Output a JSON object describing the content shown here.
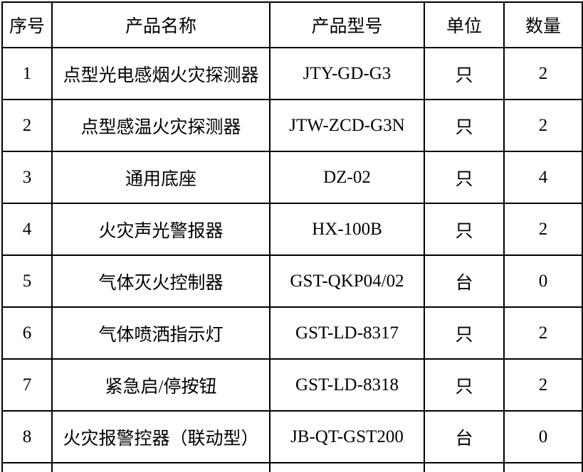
{
  "table": {
    "columns": [
      {
        "key": "no",
        "label": "序号"
      },
      {
        "key": "name",
        "label": "产品名称"
      },
      {
        "key": "model",
        "label": "产品型号"
      },
      {
        "key": "unit",
        "label": "单位"
      },
      {
        "key": "qty",
        "label": "数量"
      }
    ],
    "rows": [
      {
        "no": "1",
        "name": "点型光电感烟火灾探测器",
        "model": "JTY-GD-G3",
        "unit": "只",
        "qty": "2"
      },
      {
        "no": "2",
        "name": "点型感温火灾探测器",
        "model": "JTW-ZCD-G3N",
        "unit": "只",
        "qty": "2"
      },
      {
        "no": "3",
        "name": "通用底座",
        "model": "DZ-02",
        "unit": "只",
        "qty": "4"
      },
      {
        "no": "4",
        "name": "火灾声光警报器",
        "model": "HX-100B",
        "unit": "只",
        "qty": "2"
      },
      {
        "no": "5",
        "name": "气体灭火控制器",
        "model": "GST-QKP04/02",
        "unit": "台",
        "qty": "0"
      },
      {
        "no": "6",
        "name": "气体喷洒指示灯",
        "model": "GST-LD-8317",
        "unit": "只",
        "qty": "2"
      },
      {
        "no": "7",
        "name": "紧急启/停按钮",
        "model": "GST-LD-8318",
        "unit": "只",
        "qty": "2"
      },
      {
        "no": "8",
        "name": "火灾报警控器（联动型）",
        "model": "JB-QT-GST200",
        "unit": "台",
        "qty": "0"
      }
    ]
  },
  "colors": {
    "border": "#000000",
    "text": "#000000",
    "background": "#ffffff"
  }
}
